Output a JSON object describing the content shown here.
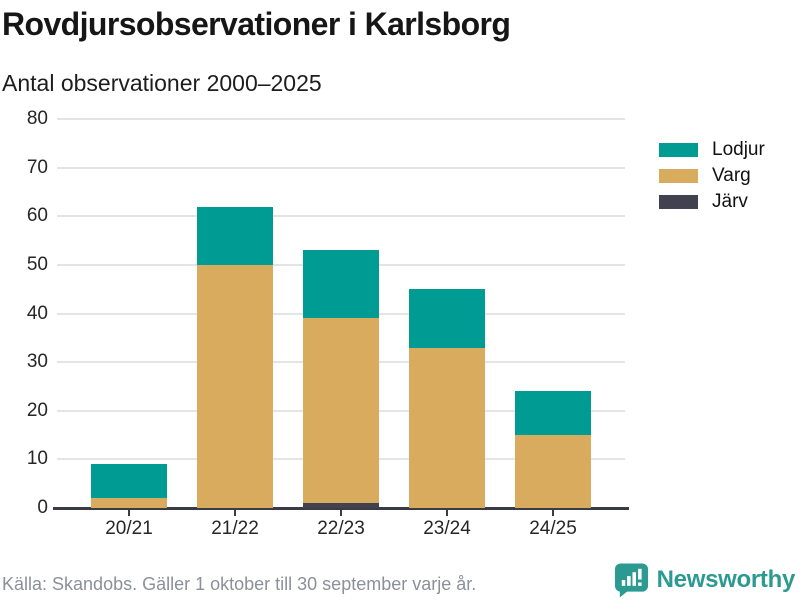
{
  "header": {
    "title": "Rovdjursobservationer i Karlsborg",
    "subtitle": "Antal observationer 2000–2025"
  },
  "chart_data": {
    "type": "bar",
    "stacked": true,
    "title": "Rovdjursobservationer i Karlsborg",
    "subtitle": "Antal observationer 2000–2025",
    "categories": [
      "20/21",
      "21/22",
      "22/23",
      "23/24",
      "24/25"
    ],
    "series": [
      {
        "name": "Lodjur",
        "color": "#009c93",
        "values": [
          7,
          12,
          14,
          12,
          9
        ]
      },
      {
        "name": "Varg",
        "color": "#d8ab5e",
        "values": [
          2,
          50,
          38,
          33,
          15
        ]
      },
      {
        "name": "Järv",
        "color": "#41414f",
        "values": [
          0,
          0,
          1,
          0,
          0
        ]
      }
    ],
    "stack_order_bottom_to_top": [
      "Järv",
      "Varg",
      "Lodjur"
    ],
    "totals": [
      9,
      62,
      53,
      45,
      24
    ],
    "xlabel": "",
    "ylabel": "",
    "ylim": [
      0,
      80
    ],
    "yticks": [
      0,
      10,
      20,
      30,
      40,
      50,
      60,
      70,
      80
    ],
    "grid": "horizontal",
    "legend_position": "right"
  },
  "footer": {
    "source": "Källa: Skandobs. Gäller 1 oktober till 30 september varje år.",
    "brand": "Newsworthy"
  },
  "colors": {
    "lodjur": "#009c93",
    "varg": "#d8ab5e",
    "jarv": "#41414f",
    "axis": "#3b3b45",
    "gridline": "#e4e4e4",
    "brand_teal": "#2d9a92",
    "source_text": "#8b909a"
  }
}
